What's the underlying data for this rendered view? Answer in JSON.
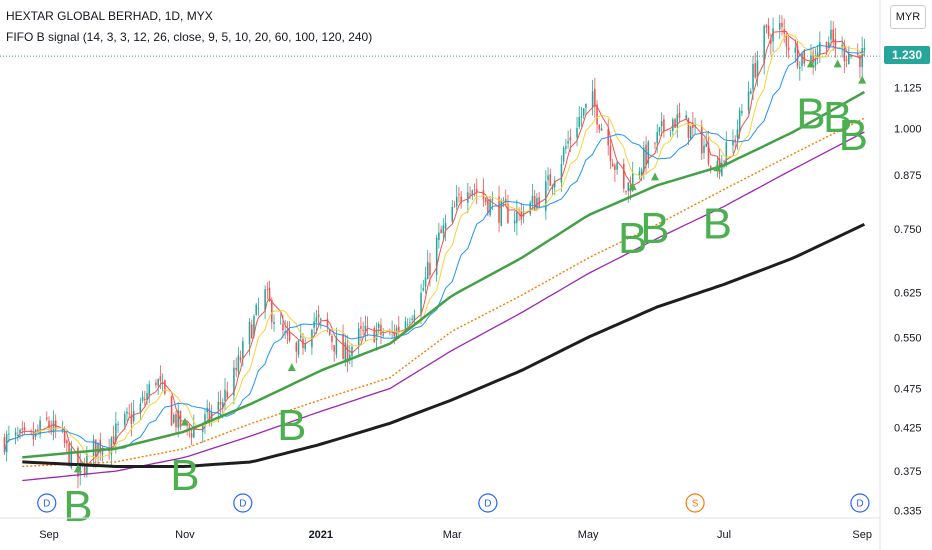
{
  "header": {
    "title": "HEXTAR GLOBAL BERHAD, 1D, MYX",
    "indicator": "FIFO B signal (14, 3, 3, 12, 26, close, 9, 5, 10, 20, 60, 100, 120, 240)"
  },
  "currency": "MYR",
  "last_price": "1.230",
  "colors": {
    "up": "#26a69a",
    "down": "#ef5350",
    "ma_red": "#ef5350",
    "ma_yellow": "#f5d33b",
    "ma_blue": "#2196f3",
    "ma_green": "#43a047",
    "ma_orange": "#f57c00",
    "ma_purple": "#9c27b0",
    "ma_black": "#1e1e1e",
    "signal": "#4caf50"
  },
  "chart_data": {
    "type": "candlestick",
    "yscale": "log",
    "ylim": [
      0.315,
      1.42
    ],
    "y_ticks": [
      "1.125",
      "1.000",
      "0.875",
      "0.750",
      "0.625",
      "0.550",
      "0.475",
      "0.425",
      "0.375",
      "0.335"
    ],
    "x_ticks": [
      "Sep",
      "Nov",
      "2021",
      "Mar",
      "May",
      "Jul",
      "Sep"
    ],
    "close_path": [
      [
        "2020-08-24",
        0.41
      ],
      [
        "2020-08-31",
        0.43
      ],
      [
        "2020-09-07",
        0.41
      ],
      [
        "2020-09-14",
        0.37
      ],
      [
        "2020-09-21",
        0.4
      ],
      [
        "2020-09-28",
        0.41
      ],
      [
        "2020-10-05",
        0.43
      ],
      [
        "2020-10-12",
        0.45
      ],
      [
        "2020-10-19",
        0.49
      ],
      [
        "2020-10-26",
        0.44
      ],
      [
        "2020-11-02",
        0.42
      ],
      [
        "2020-11-09",
        0.43
      ],
      [
        "2020-11-16",
        0.45
      ],
      [
        "2020-11-23",
        0.49
      ],
      [
        "2020-11-30",
        0.56
      ],
      [
        "2020-12-07",
        0.62
      ],
      [
        "2020-12-14",
        0.56
      ],
      [
        "2020-12-21",
        0.52
      ],
      [
        "2020-12-28",
        0.58
      ],
      [
        "2021-01-04",
        0.56
      ],
      [
        "2021-01-11",
        0.52
      ],
      [
        "2021-01-18",
        0.55
      ],
      [
        "2021-01-25",
        0.56
      ],
      [
        "2021-02-01",
        0.55
      ],
      [
        "2021-02-08",
        0.58
      ],
      [
        "2021-02-15",
        0.62
      ],
      [
        "2021-02-22",
        0.72
      ],
      [
        "2021-03-01",
        0.78
      ],
      [
        "2021-03-08",
        0.86
      ],
      [
        "2021-03-15",
        0.82
      ],
      [
        "2021-03-22",
        0.79
      ],
      [
        "2021-03-29",
        0.78
      ],
      [
        "2021-04-05",
        0.8
      ],
      [
        "2021-04-12",
        0.84
      ],
      [
        "2021-04-19",
        0.92
      ],
      [
        "2021-04-26",
        1.02
      ],
      [
        "2021-05-03",
        1.08
      ],
      [
        "2021-05-10",
        0.96
      ],
      [
        "2021-05-17",
        0.83
      ],
      [
        "2021-05-24",
        0.9
      ],
      [
        "2021-05-31",
        0.96
      ],
      [
        "2021-06-07",
        1.03
      ],
      [
        "2021-06-14",
        1.01
      ],
      [
        "2021-06-21",
        0.96
      ],
      [
        "2021-06-28",
        0.9
      ],
      [
        "2021-07-05",
        0.96
      ],
      [
        "2021-07-12",
        1.12
      ],
      [
        "2021-07-19",
        1.3
      ],
      [
        "2021-07-26",
        1.33
      ],
      [
        "2021-08-02",
        1.24
      ],
      [
        "2021-08-09",
        1.22
      ],
      [
        "2021-08-16",
        1.3
      ],
      [
        "2021-08-23",
        1.25
      ],
      [
        "2021-08-30",
        1.23
      ]
    ],
    "moving_averages": [
      {
        "key": "ma_green",
        "points": [
          [
            "2020-08-20",
            0.39
          ],
          [
            "2020-10-01",
            0.4
          ],
          [
            "2020-11-01",
            0.42
          ],
          [
            "2020-12-01",
            0.455
          ],
          [
            "2021-01-01",
            0.5
          ],
          [
            "2021-02-01",
            0.54
          ],
          [
            "2021-03-01",
            0.62
          ],
          [
            "2021-04-01",
            0.69
          ],
          [
            "2021-05-01",
            0.78
          ],
          [
            "2021-06-01",
            0.85
          ],
          [
            "2021-07-01",
            0.9
          ],
          [
            "2021-08-01",
            0.99
          ],
          [
            "2021-09-02",
            1.11
          ]
        ]
      },
      {
        "key": "ma_orange",
        "points": [
          [
            "2020-08-20",
            0.38
          ],
          [
            "2020-10-01",
            0.385
          ],
          [
            "2020-11-01",
            0.4
          ],
          [
            "2020-12-01",
            0.43
          ],
          [
            "2021-01-01",
            0.46
          ],
          [
            "2021-02-01",
            0.49
          ],
          [
            "2021-03-01",
            0.56
          ],
          [
            "2021-04-01",
            0.62
          ],
          [
            "2021-05-01",
            0.69
          ],
          [
            "2021-06-01",
            0.76
          ],
          [
            "2021-07-01",
            0.84
          ],
          [
            "2021-08-01",
            0.93
          ],
          [
            "2021-09-02",
            1.03
          ]
        ]
      },
      {
        "key": "ma_purple",
        "points": [
          [
            "2020-08-20",
            0.365
          ],
          [
            "2020-10-01",
            0.375
          ],
          [
            "2020-11-01",
            0.39
          ],
          [
            "2020-12-01",
            0.415
          ],
          [
            "2021-01-01",
            0.445
          ],
          [
            "2021-02-01",
            0.475
          ],
          [
            "2021-03-01",
            0.53
          ],
          [
            "2021-04-01",
            0.59
          ],
          [
            "2021-05-01",
            0.66
          ],
          [
            "2021-06-01",
            0.73
          ],
          [
            "2021-07-01",
            0.8
          ],
          [
            "2021-08-01",
            0.89
          ],
          [
            "2021-09-02",
            0.99
          ]
        ]
      },
      {
        "key": "ma_black",
        "points": [
          [
            "2020-08-20",
            0.385
          ],
          [
            "2020-10-01",
            0.38
          ],
          [
            "2020-11-01",
            0.38
          ],
          [
            "2020-12-01",
            0.385
          ],
          [
            "2021-01-01",
            0.405
          ],
          [
            "2021-02-01",
            0.43
          ],
          [
            "2021-03-01",
            0.46
          ],
          [
            "2021-04-01",
            0.5
          ],
          [
            "2021-05-01",
            0.55
          ],
          [
            "2021-06-01",
            0.6
          ],
          [
            "2021-07-01",
            0.64
          ],
          [
            "2021-08-01",
            0.69
          ],
          [
            "2021-09-02",
            0.76
          ]
        ]
      }
    ],
    "signals": [
      {
        "date": "2020-09-14",
        "price": 0.325,
        "label": "B"
      },
      {
        "date": "2020-11-01",
        "price": 0.355,
        "label": "B"
      },
      {
        "date": "2020-12-19",
        "price": 0.41,
        "label": "B"
      },
      {
        "date": "2021-05-21",
        "price": 0.7,
        "label": "B"
      },
      {
        "date": "2021-05-31",
        "price": 0.72,
        "label": "B"
      },
      {
        "date": "2021-06-28",
        "price": 0.73,
        "label": "B"
      },
      {
        "date": "2021-08-09",
        "price": 1.0,
        "label": "B"
      },
      {
        "date": "2021-08-21",
        "price": 0.99,
        "label": "B"
      },
      {
        "date": "2021-08-28",
        "price": 0.94,
        "label": "B"
      }
    ],
    "markers": [
      {
        "date": "2020-09-14",
        "price": 0.378
      },
      {
        "date": "2020-11-01",
        "price": 0.432
      },
      {
        "date": "2020-12-19",
        "price": 0.505
      },
      {
        "date": "2021-05-21",
        "price": 0.848
      },
      {
        "date": "2021-05-31",
        "price": 0.872
      },
      {
        "date": "2021-06-28",
        "price": 0.895
      },
      {
        "date": "2021-08-09",
        "price": 1.205
      },
      {
        "date": "2021-08-21",
        "price": 1.205
      },
      {
        "date": "2021-09-01",
        "price": 1.15
      }
    ],
    "events": [
      {
        "date": "2020-08-31",
        "label": "D",
        "color": "#2962ff"
      },
      {
        "date": "2020-11-27",
        "label": "D",
        "color": "#2962ff"
      },
      {
        "date": "2021-03-17",
        "label": "D",
        "color": "#2962ff"
      },
      {
        "date": "2021-06-18",
        "label": "S",
        "color": "#f57c00"
      },
      {
        "date": "2021-08-31",
        "label": "D",
        "color": "#2962ff"
      }
    ]
  }
}
